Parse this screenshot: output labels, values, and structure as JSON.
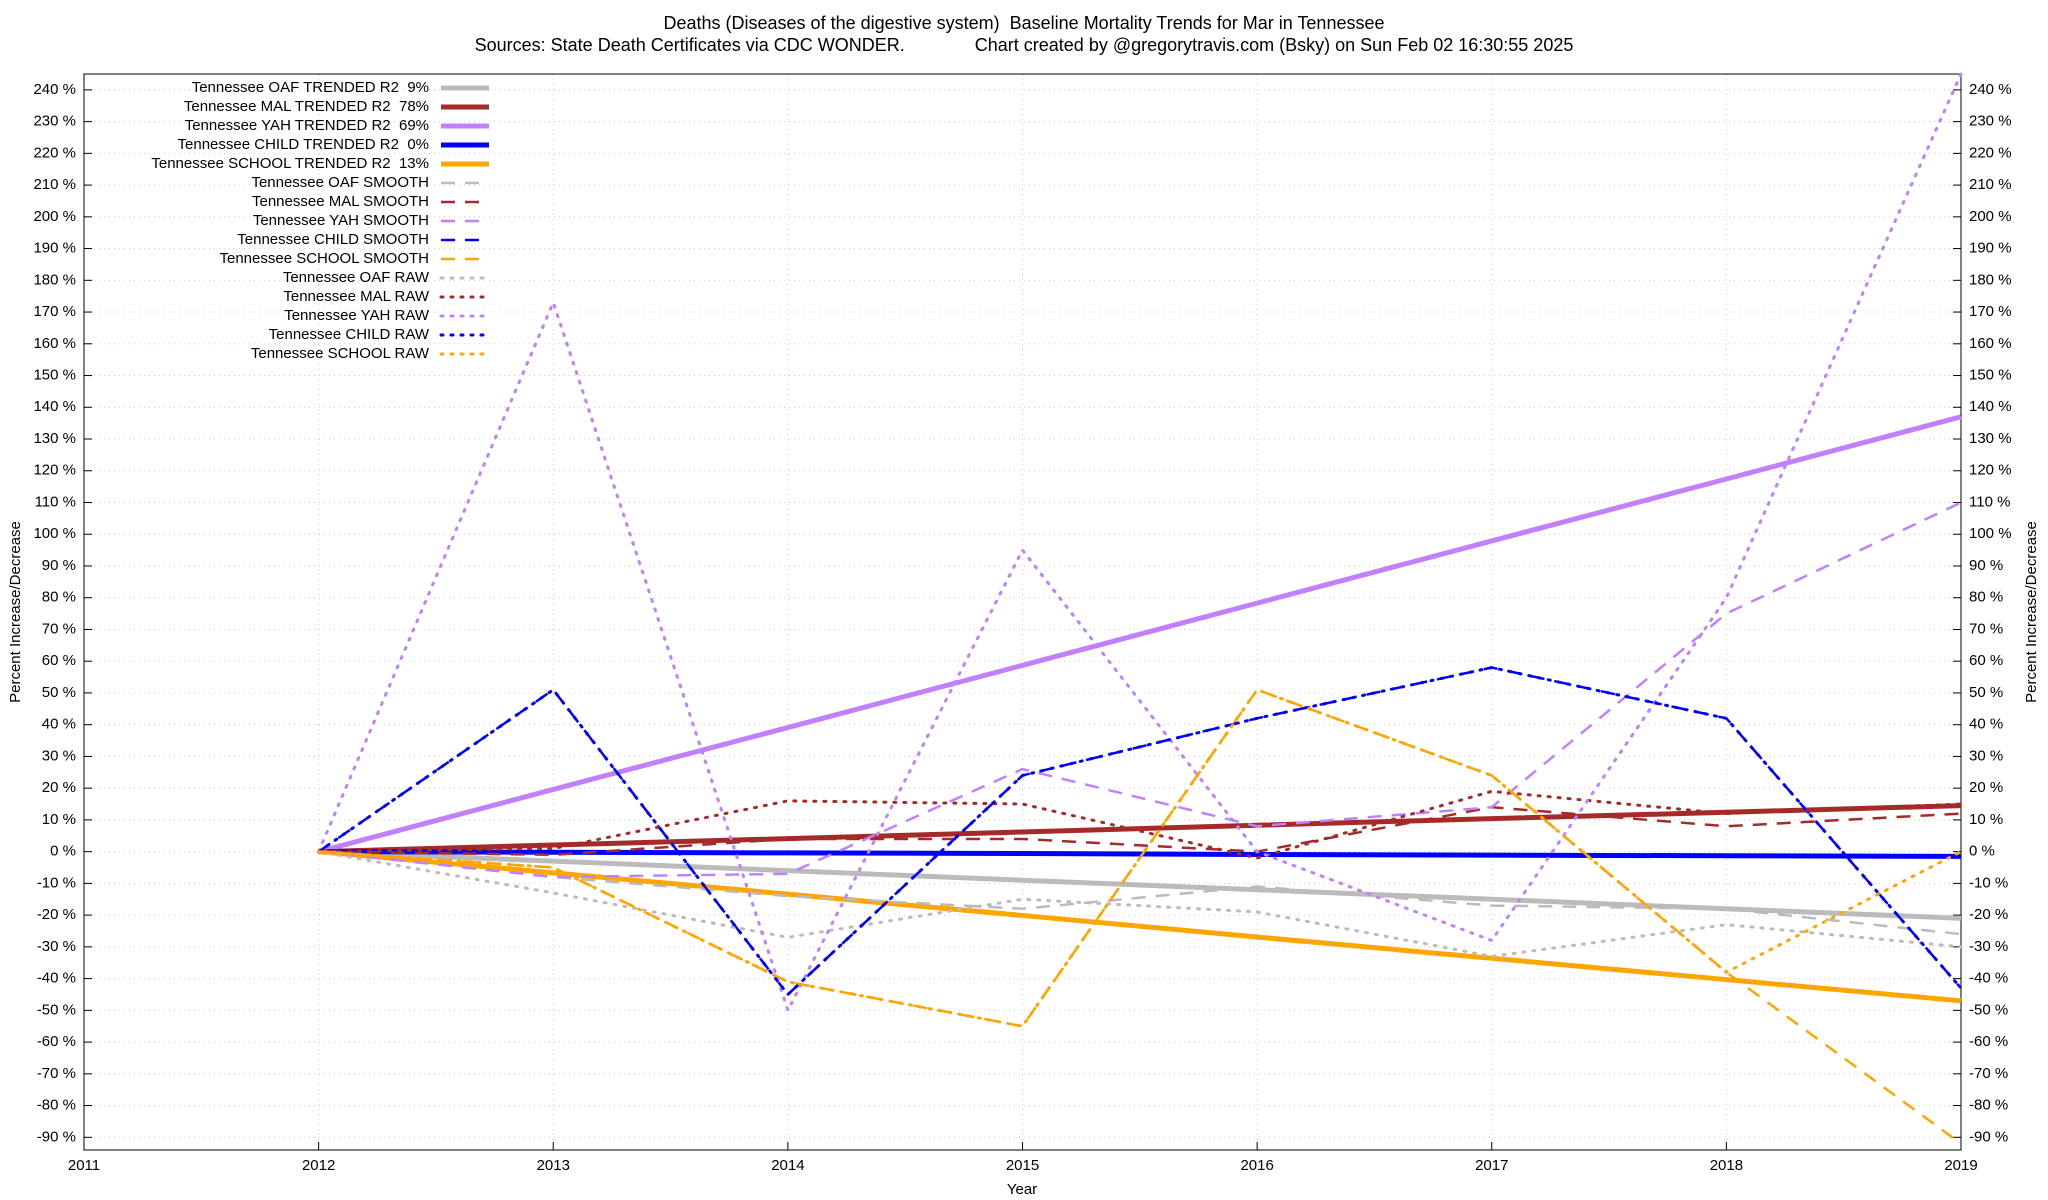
{
  "chart_data": {
    "type": "line",
    "title": "Deaths (Diseases of the digestive system)  Baseline Mortality Trends for Mar in Tennessee",
    "subtitle": "Sources: State Death Certificates via CDC WONDER.              Chart created by @gregorytravis.com (Bsky) on Sun Feb 02 16:30:55 2025",
    "x_label": "Year",
    "y_label": "Percent Increase/Decrease",
    "x": [
      2012,
      2013,
      2014,
      2015,
      2016,
      2017,
      2018,
      2019
    ],
    "xlim": [
      2011,
      2019
    ],
    "xticks": [
      2011,
      2012,
      2013,
      2014,
      2015,
      2016,
      2017,
      2018,
      2019
    ],
    "ylim": [
      -94,
      245
    ],
    "yticks": [
      {
        "value": -90,
        "label": "-90 %"
      },
      {
        "value": -80,
        "label": "-80 %"
      },
      {
        "value": -70,
        "label": "-70 %"
      },
      {
        "value": -60,
        "label": "-60 %"
      },
      {
        "value": -50,
        "label": "-50 %"
      },
      {
        "value": -40,
        "label": "-40 %"
      },
      {
        "value": -30,
        "label": "-30 %"
      },
      {
        "value": -20,
        "label": "-20 %"
      },
      {
        "value": -10,
        "label": "-10 %"
      },
      {
        "value": 0,
        "label": "0 %"
      },
      {
        "value": 10,
        "label": "10 %"
      },
      {
        "value": 20,
        "label": "20 %"
      },
      {
        "value": 30,
        "label": "30 %"
      },
      {
        "value": 40,
        "label": "40 %"
      },
      {
        "value": 50,
        "label": "50 %"
      },
      {
        "value": 60,
        "label": "60 %"
      },
      {
        "value": 70,
        "label": "70 %"
      },
      {
        "value": 80,
        "label": "80 %"
      },
      {
        "value": 90,
        "label": "90 %"
      },
      {
        "value": 100,
        "label": "100 %"
      },
      {
        "value": 110,
        "label": "110 %"
      },
      {
        "value": 120,
        "label": "120 %"
      },
      {
        "value": 130,
        "label": "130 %"
      },
      {
        "value": 140,
        "label": "140 %"
      },
      {
        "value": 150,
        "label": "150 %"
      },
      {
        "value": 160,
        "label": "160 %"
      },
      {
        "value": 170,
        "label": "170 %"
      },
      {
        "value": 180,
        "label": "180 %"
      },
      {
        "value": 190,
        "label": "190 %"
      },
      {
        "value": 200,
        "label": "200 %"
      },
      {
        "value": 210,
        "label": "210 %"
      },
      {
        "value": 220,
        "label": "220 %"
      },
      {
        "value": 230,
        "label": "230 %"
      },
      {
        "value": 240,
        "label": "240 %"
      }
    ],
    "grid": true,
    "legend": "upper left",
    "series": [
      {
        "name": "Tennessee OAF TRENDED R2  9%",
        "color": "#bbbbbb",
        "style": "solid",
        "values": [
          0,
          -3,
          -6,
          -9,
          -12,
          -15,
          -18,
          -21
        ]
      },
      {
        "name": "Tennessee MAL TRENDED R2  78%",
        "color": "#a52a2a",
        "style": "solid",
        "values": [
          0,
          2.1,
          4.1,
          6.2,
          8.3,
          10.4,
          12.4,
          14.5
        ]
      },
      {
        "name": "Tennessee YAH TRENDED R2  69%",
        "color": "#c080ff",
        "style": "solid",
        "values": [
          0,
          19.6,
          39.1,
          58.7,
          78.3,
          97.9,
          117.4,
          137
        ]
      },
      {
        "name": "Tennessee CHILD TRENDED R2  0%",
        "color": "#0000ff",
        "style": "solid",
        "values": [
          0,
          -0.2,
          -0.4,
          -0.6,
          -0.9,
          -1.1,
          -1.3,
          -1.5
        ]
      },
      {
        "name": "Tennessee SCHOOL TRENDED R2  13%",
        "color": "#ffa500",
        "style": "solid",
        "values": [
          0,
          -6.7,
          -13.4,
          -20.1,
          -26.9,
          -33.6,
          -40.3,
          -47
        ]
      },
      {
        "name": "Tennessee OAF SMOOTH",
        "color": "#bbbbbb",
        "style": "dashed",
        "values": [
          0,
          -8,
          -14,
          -18,
          -11,
          -17,
          -18,
          -26
        ]
      },
      {
        "name": "Tennessee MAL SMOOTH",
        "color": "#a52a2a",
        "style": "dashed",
        "values": [
          0,
          -1,
          4,
          4,
          0,
          14,
          8,
          12
        ]
      },
      {
        "name": "Tennessee YAH SMOOTH",
        "color": "#c080ff",
        "style": "dashed",
        "values": [
          0,
          -8,
          -7,
          26,
          8,
          14,
          75,
          110
        ]
      },
      {
        "name": "Tennessee CHILD SMOOTH",
        "color": "#0000ff",
        "style": "dashed",
        "values": [
          0,
          51,
          -45,
          24,
          42,
          58,
          42,
          -43
        ]
      },
      {
        "name": "Tennessee SCHOOL SMOOTH",
        "color": "#ffa500",
        "style": "dashed",
        "values": [
          0,
          -5,
          -41,
          -55,
          51,
          24,
          -38,
          -92
        ]
      },
      {
        "name": "Tennessee OAF RAW",
        "color": "#bbbbbb",
        "style": "dotted",
        "values": [
          0,
          -13,
          -27,
          -15,
          -19,
          -33,
          -23,
          -30
        ]
      },
      {
        "name": "Tennessee MAL RAW",
        "color": "#a52a2a",
        "style": "dotted",
        "values": [
          0,
          1,
          16,
          15,
          -2,
          19,
          12,
          15
        ]
      },
      {
        "name": "Tennessee YAH RAW",
        "color": "#c080ff",
        "style": "dotted",
        "values": [
          0,
          173,
          -50,
          95,
          0,
          -28,
          80,
          245
        ]
      },
      {
        "name": "Tennessee CHILD RAW",
        "color": "#0000ff",
        "style": "dotted",
        "values": [
          0,
          51,
          -45,
          24,
          42,
          58,
          42,
          -43
        ]
      },
      {
        "name": "Tennessee SCHOOL RAW",
        "color": "#ffa500",
        "style": "dotted",
        "values": [
          0,
          -5,
          -41,
          -55,
          51,
          24,
          -38,
          0
        ]
      }
    ]
  }
}
